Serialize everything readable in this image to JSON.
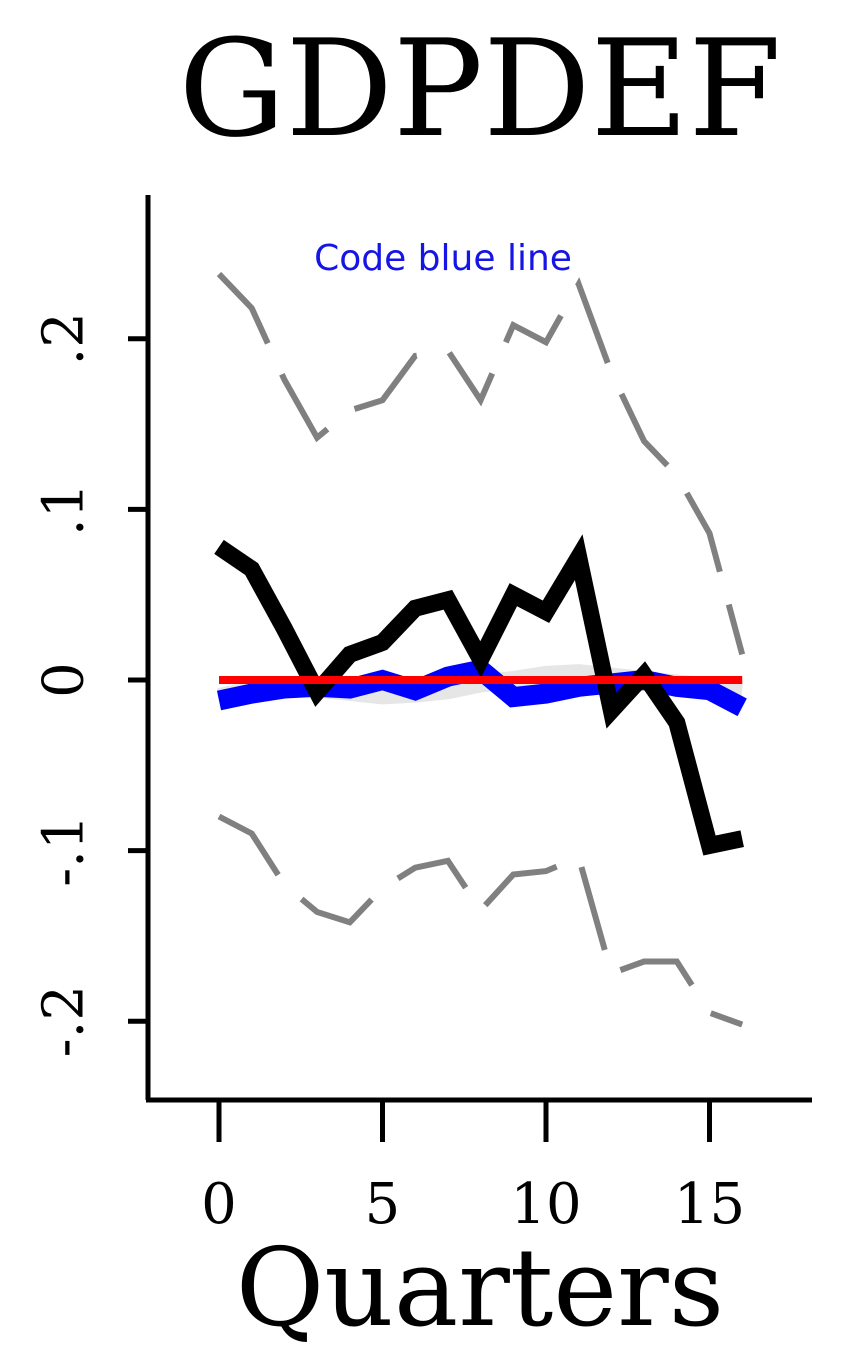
{
  "chart_data": {
    "type": "line",
    "title": "GDPDEF",
    "xlabel": "Quarters",
    "ylabel": "",
    "annotation": "Code blue line",
    "xlim": [
      -2,
      18
    ],
    "ylim": [
      -0.24,
      0.28
    ],
    "x_ticks": [
      {
        "value": 0,
        "label": "0"
      },
      {
        "value": 5,
        "label": "5"
      },
      {
        "value": 10,
        "label": "10"
      },
      {
        "value": 15,
        "label": "15"
      }
    ],
    "y_ticks": [
      {
        "value": 0.2,
        "label": ".2"
      },
      {
        "value": 0.1,
        "label": ".1"
      },
      {
        "value": 0,
        "label": "0"
      },
      {
        "value": -0.1,
        "label": "-.1"
      },
      {
        "value": -0.2,
        "label": "-.2"
      }
    ],
    "series": [
      {
        "key": "upper_band",
        "color": "#808080",
        "style": "dashed",
        "x": [
          0,
          1,
          2,
          3,
          4,
          5,
          6,
          7,
          8,
          9,
          10,
          11,
          12,
          13,
          14,
          15,
          16
        ],
        "y": [
          0.238,
          0.218,
          0.176,
          0.142,
          0.158,
          0.164,
          0.19,
          0.193,
          0.164,
          0.208,
          0.198,
          0.232,
          0.18,
          0.14,
          0.12,
          0.086,
          0.015
        ]
      },
      {
        "key": "lower_band",
        "color": "#808080",
        "style": "dashed",
        "x": [
          0,
          1,
          2,
          3,
          4,
          5,
          6,
          7,
          8,
          9,
          10,
          11,
          12,
          13,
          14,
          15,
          16
        ],
        "y": [
          -0.08,
          -0.09,
          -0.12,
          -0.136,
          -0.142,
          -0.122,
          -0.11,
          -0.106,
          -0.135,
          -0.114,
          -0.112,
          -0.104,
          -0.172,
          -0.165,
          -0.165,
          -0.195,
          -0.202
        ]
      },
      {
        "key": "light_gray_line",
        "color": "#e6e6e6",
        "style": "solid",
        "x": [
          0,
          1,
          2,
          3,
          4,
          5,
          6,
          7,
          8,
          9,
          10,
          11,
          12,
          13,
          14,
          15,
          16
        ],
        "y": [
          -0.01,
          -0.006,
          -0.004,
          -0.005,
          -0.007,
          -0.009,
          -0.008,
          -0.006,
          -0.002,
          0.0,
          0.003,
          0.004,
          0.002,
          0.0,
          -0.002,
          -0.004,
          -0.006
        ]
      },
      {
        "key": "blue_line",
        "color": "#0000ff",
        "style": "solid",
        "x": [
          0,
          1,
          2,
          3,
          4,
          5,
          6,
          7,
          8,
          9,
          10,
          11,
          12,
          13,
          14,
          15,
          16
        ],
        "y": [
          -0.012,
          -0.008,
          -0.005,
          -0.004,
          -0.005,
          0.0,
          -0.006,
          0.002,
          0.006,
          -0.01,
          -0.008,
          -0.004,
          -0.002,
          0.0,
          -0.004,
          -0.006,
          -0.016
        ]
      },
      {
        "key": "black_line",
        "color": "#000000",
        "style": "solid",
        "x": [
          0,
          1,
          2,
          3,
          4,
          5,
          6,
          7,
          8,
          9,
          10,
          11,
          12,
          13,
          14,
          15,
          16
        ],
        "y": [
          0.078,
          0.065,
          0.03,
          -0.007,
          0.015,
          0.022,
          0.042,
          0.047,
          0.012,
          0.05,
          0.04,
          0.072,
          -0.018,
          0.003,
          -0.025,
          -0.097,
          -0.093
        ]
      },
      {
        "key": "red_zero_line",
        "color": "#ff0000",
        "style": "solid",
        "x": [
          0,
          16
        ],
        "y": [
          0,
          0
        ]
      }
    ]
  }
}
